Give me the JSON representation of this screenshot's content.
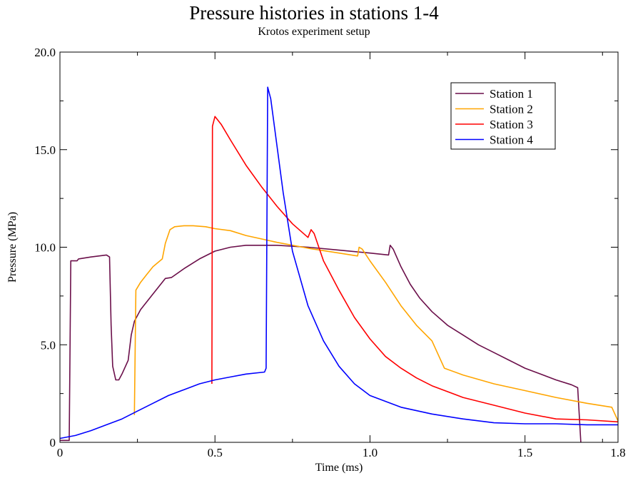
{
  "chart_data": {
    "type": "line",
    "title": "Pressure histories in stations 1-4",
    "subtitle": "Krotos experiment setup",
    "xlabel": "Time (ms)",
    "ylabel": "Pressure (MPa)",
    "xlim": [
      0,
      1.8
    ],
    "ylim": [
      0,
      20
    ],
    "xticks": [
      0,
      0.5,
      1.0,
      1.5,
      1.8
    ],
    "xtick_labels": [
      "0",
      "0.5",
      "1.0",
      "1.5",
      "1.8"
    ],
    "yticks": [
      0,
      5,
      10,
      15,
      20
    ],
    "ytick_labels": [
      "0",
      "5.0",
      "10.0",
      "15.0",
      "20.0"
    ],
    "grid": false,
    "legend_position": "top-right",
    "series": [
      {
        "name": "Station 1",
        "color": "#6b0f4a",
        "points": [
          [
            0,
            0.1
          ],
          [
            0.03,
            0.1
          ],
          [
            0.035,
            9.3
          ],
          [
            0.055,
            9.3
          ],
          [
            0.06,
            9.4
          ],
          [
            0.1,
            9.5
          ],
          [
            0.15,
            9.6
          ],
          [
            0.16,
            9.5
          ],
          [
            0.165,
            6.0
          ],
          [
            0.17,
            3.9
          ],
          [
            0.18,
            3.2
          ],
          [
            0.19,
            3.2
          ],
          [
            0.2,
            3.5
          ],
          [
            0.22,
            4.2
          ],
          [
            0.23,
            5.5
          ],
          [
            0.24,
            6.2
          ],
          [
            0.26,
            6.8
          ],
          [
            0.3,
            7.6
          ],
          [
            0.34,
            8.4
          ],
          [
            0.36,
            8.45
          ],
          [
            0.4,
            8.9
          ],
          [
            0.45,
            9.4
          ],
          [
            0.5,
            9.8
          ],
          [
            0.55,
            10.0
          ],
          [
            0.6,
            10.1
          ],
          [
            0.7,
            10.1
          ],
          [
            0.8,
            10.0
          ],
          [
            0.9,
            9.85
          ],
          [
            1.0,
            9.7
          ],
          [
            1.06,
            9.6
          ],
          [
            1.065,
            10.1
          ],
          [
            1.075,
            9.9
          ],
          [
            1.1,
            9.0
          ],
          [
            1.13,
            8.1
          ],
          [
            1.16,
            7.4
          ],
          [
            1.2,
            6.7
          ],
          [
            1.25,
            6.0
          ],
          [
            1.3,
            5.5
          ],
          [
            1.35,
            5.0
          ],
          [
            1.4,
            4.6
          ],
          [
            1.45,
            4.2
          ],
          [
            1.5,
            3.8
          ],
          [
            1.55,
            3.5
          ],
          [
            1.6,
            3.2
          ],
          [
            1.65,
            2.95
          ],
          [
            1.67,
            2.8
          ],
          [
            1.68,
            0
          ]
        ]
      },
      {
        "name": "Station 2",
        "color": "#ffa500",
        "points": [
          [
            0.24,
            1.4
          ],
          [
            0.245,
            7.8
          ],
          [
            0.26,
            8.2
          ],
          [
            0.28,
            8.6
          ],
          [
            0.3,
            9.0
          ],
          [
            0.33,
            9.4
          ],
          [
            0.34,
            10.2
          ],
          [
            0.355,
            10.9
          ],
          [
            0.37,
            11.05
          ],
          [
            0.4,
            11.1
          ],
          [
            0.43,
            11.1
          ],
          [
            0.47,
            11.05
          ],
          [
            0.5,
            10.95
          ],
          [
            0.55,
            10.85
          ],
          [
            0.6,
            10.6
          ],
          [
            0.7,
            10.25
          ],
          [
            0.8,
            9.95
          ],
          [
            0.9,
            9.7
          ],
          [
            0.96,
            9.55
          ],
          [
            0.965,
            10.0
          ],
          [
            0.975,
            9.9
          ],
          [
            1.0,
            9.3
          ],
          [
            1.05,
            8.2
          ],
          [
            1.1,
            7.0
          ],
          [
            1.15,
            6.0
          ],
          [
            1.2,
            5.2
          ],
          [
            1.24,
            3.8
          ],
          [
            1.3,
            3.45
          ],
          [
            1.4,
            3.0
          ],
          [
            1.5,
            2.65
          ],
          [
            1.6,
            2.3
          ],
          [
            1.7,
            2.0
          ],
          [
            1.78,
            1.8
          ],
          [
            1.8,
            1.1
          ]
        ]
      },
      {
        "name": "Station 3",
        "color": "#ff0000",
        "points": [
          [
            0.49,
            3.0
          ],
          [
            0.492,
            16.2
          ],
          [
            0.5,
            16.7
          ],
          [
            0.52,
            16.3
          ],
          [
            0.55,
            15.5
          ],
          [
            0.6,
            14.2
          ],
          [
            0.65,
            13.1
          ],
          [
            0.7,
            12.1
          ],
          [
            0.75,
            11.2
          ],
          [
            0.8,
            10.5
          ],
          [
            0.81,
            10.9
          ],
          [
            0.82,
            10.7
          ],
          [
            0.85,
            9.3
          ],
          [
            0.9,
            7.8
          ],
          [
            0.95,
            6.4
          ],
          [
            1.0,
            5.3
          ],
          [
            1.05,
            4.4
          ],
          [
            1.1,
            3.8
          ],
          [
            1.15,
            3.3
          ],
          [
            1.2,
            2.9
          ],
          [
            1.3,
            2.3
          ],
          [
            1.4,
            1.9
          ],
          [
            1.5,
            1.5
          ],
          [
            1.6,
            1.2
          ],
          [
            1.7,
            1.15
          ],
          [
            1.8,
            1.05
          ]
        ]
      },
      {
        "name": "Station 4",
        "color": "#0000ff",
        "points": [
          [
            0,
            0.2
          ],
          [
            0.05,
            0.35
          ],
          [
            0.1,
            0.6
          ],
          [
            0.15,
            0.9
          ],
          [
            0.2,
            1.2
          ],
          [
            0.25,
            1.6
          ],
          [
            0.3,
            2.0
          ],
          [
            0.35,
            2.4
          ],
          [
            0.4,
            2.7
          ],
          [
            0.45,
            3.0
          ],
          [
            0.5,
            3.2
          ],
          [
            0.55,
            3.35
          ],
          [
            0.6,
            3.5
          ],
          [
            0.66,
            3.6
          ],
          [
            0.665,
            3.8
          ],
          [
            0.67,
            18.2
          ],
          [
            0.68,
            17.6
          ],
          [
            0.7,
            15.2
          ],
          [
            0.72,
            12.8
          ],
          [
            0.75,
            9.8
          ],
          [
            0.8,
            7.0
          ],
          [
            0.85,
            5.2
          ],
          [
            0.9,
            3.9
          ],
          [
            0.95,
            3.0
          ],
          [
            1.0,
            2.4
          ],
          [
            1.1,
            1.8
          ],
          [
            1.2,
            1.45
          ],
          [
            1.3,
            1.2
          ],
          [
            1.4,
            1.0
          ],
          [
            1.5,
            0.95
          ],
          [
            1.6,
            0.95
          ],
          [
            1.7,
            0.9
          ],
          [
            1.8,
            0.9
          ]
        ]
      }
    ]
  }
}
